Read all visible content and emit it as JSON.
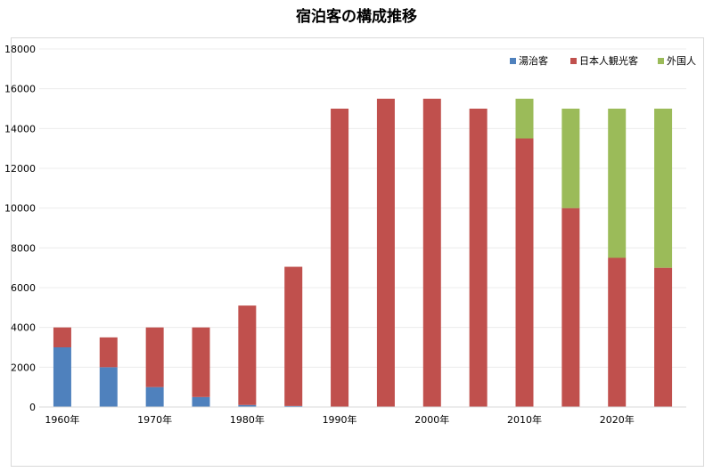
{
  "chart_data": {
    "type": "bar",
    "stacked": true,
    "title": "宿泊客の構成推移",
    "xlabel": "",
    "ylabel": "",
    "ylim": [
      0,
      18000
    ],
    "y_ticks": [
      0,
      2000,
      4000,
      6000,
      8000,
      10000,
      12000,
      14000,
      16000,
      18000
    ],
    "x_tick_labels": [
      "1960年",
      "",
      "1970年",
      "",
      "1980年",
      "",
      "1990年",
      "",
      "2000年",
      "",
      "2010年",
      "",
      "2020年",
      ""
    ],
    "grid": true,
    "legend_position": "top-right",
    "series": [
      {
        "name": "湯治客",
        "color": "#4f81bd",
        "values": [
          3000,
          2000,
          1000,
          500,
          100,
          50,
          0,
          0,
          0,
          0,
          0,
          0,
          0,
          0
        ]
      },
      {
        "name": "日本人観光客",
        "color": "#c0504d",
        "values": [
          1000,
          1500,
          3000,
          3500,
          5000,
          7000,
          15000,
          15500,
          15500,
          15000,
          13500,
          10000,
          7500,
          7000
        ]
      },
      {
        "name": "外国人",
        "color": "#9bbb59",
        "values": [
          0,
          0,
          0,
          0,
          0,
          0,
          0,
          0,
          0,
          0,
          2000,
          5000,
          7500,
          8000
        ]
      }
    ]
  }
}
